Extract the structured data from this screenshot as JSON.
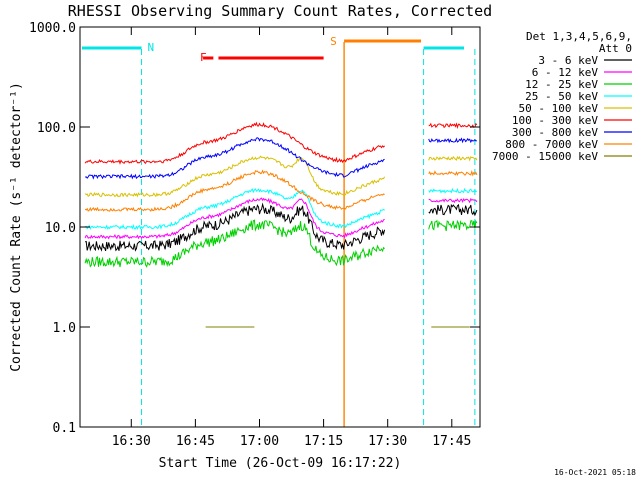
{
  "chart_data": {
    "type": "line",
    "title": "RHESSI Observing Summary Count Rates, Corrected",
    "xlabel": "Start Time (26-Oct-09 16:17:22)",
    "ylabel": "Corrected Count Rate (s⁻¹ detector⁻¹)",
    "y_scale": "log",
    "ylim": [
      0.1,
      1000
    ],
    "xlim_minutes": [
      16.3,
      17.86
    ],
    "x_ticks": [
      "16:30",
      "16:45",
      "17:00",
      "17:15",
      "17:30",
      "17:45"
    ],
    "y_ticks": [
      "0.1",
      "1.0",
      "10.0",
      "100.0",
      "1000.0"
    ],
    "footer_stamp": "16-Oct-2021 05:18",
    "legend": {
      "header_line1": "Det 1,3,4,5,6,9,",
      "header_line2": "Att 0",
      "placement": "top-right outside plot"
    },
    "flags": [
      {
        "label": "N",
        "color": "#00e5e5"
      },
      {
        "label": "F",
        "color": "#ff0000"
      },
      {
        "label": "S",
        "color": "#ff8000"
      }
    ],
    "series": [
      {
        "name": "3 - 6 keV",
        "color": "#000000",
        "base_level": 6.5
      },
      {
        "name": "6 - 12 keV",
        "color": "#ff00ff",
        "base_level": 8
      },
      {
        "name": "12 - 25 keV",
        "color": "#00d000",
        "base_level": 4.5
      },
      {
        "name": "25 - 50 keV",
        "color": "#00ffff",
        "base_level": 10
      },
      {
        "name": "50 - 100 keV",
        "color": "#d8c000",
        "base_level": 21
      },
      {
        "name": "100 - 300 keV",
        "color": "#ff0000",
        "base_level": 45
      },
      {
        "name": "300 - 800 keV",
        "color": "#0000ff",
        "base_level": 32
      },
      {
        "name": "800 - 7000 keV",
        "color": "#ff8000",
        "base_level": 15
      },
      {
        "name": "7000 - 15000 keV",
        "color": "#808000",
        "base_level": 1
      }
    ]
  }
}
